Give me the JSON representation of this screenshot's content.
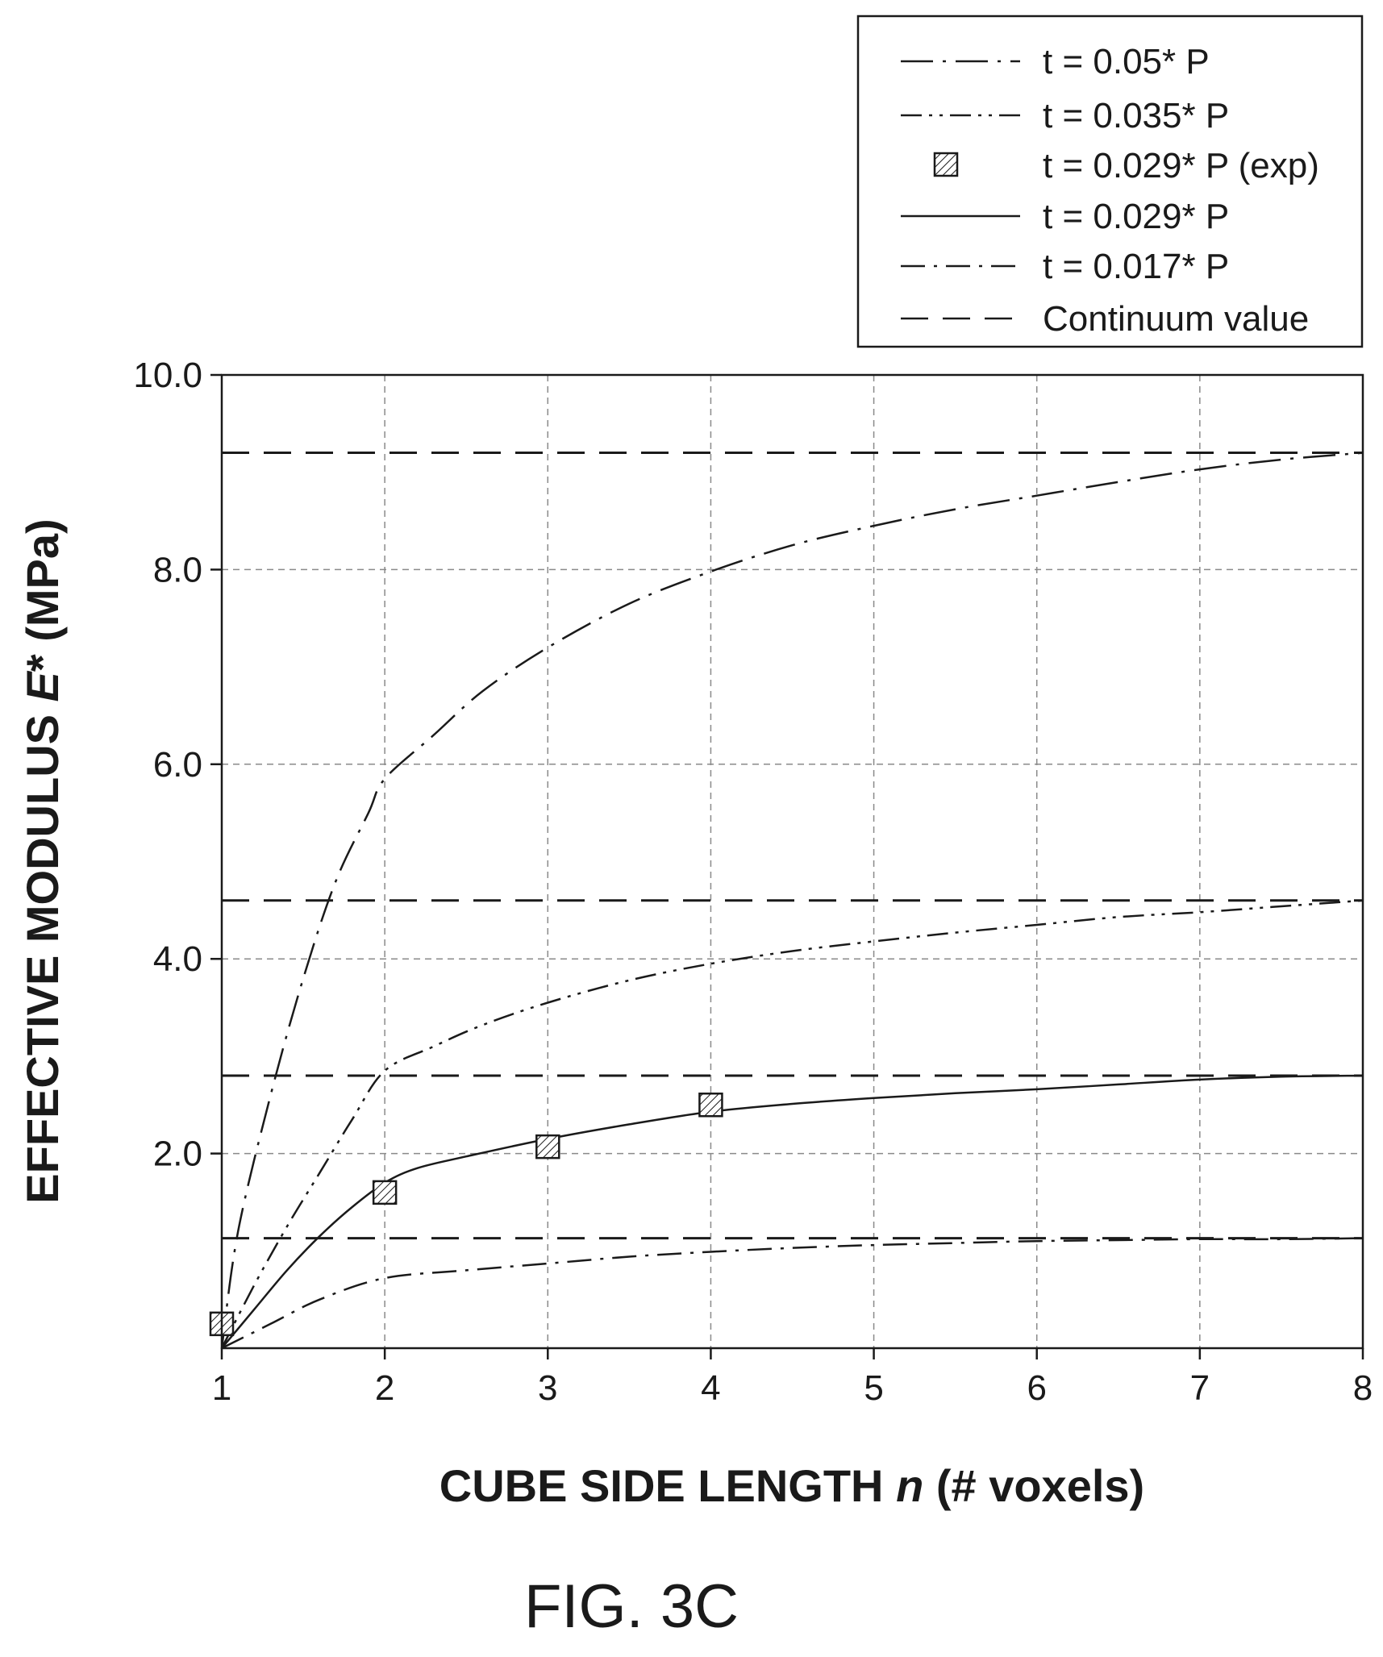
{
  "chart_data": {
    "type": "line",
    "caption": "FIG. 3C",
    "xlabel_prefix": "CUBE SIDE LENGTH ",
    "xlabel_var": "n",
    "xlabel_suffix": " (# voxels)",
    "ylabel_prefix": "EFFECTIVE MODULUS ",
    "ylabel_var": "E",
    "ylabel_suffix": "* (MPa)",
    "xlim": [
      1,
      8
    ],
    "ylim": [
      0,
      10
    ],
    "x_ticks": [
      "1",
      "2",
      "3",
      "4",
      "5",
      "6",
      "7",
      "8"
    ],
    "y_ticks": [
      {
        "value": 2,
        "label": "2.0"
      },
      {
        "value": 4,
        "label": "4.0"
      },
      {
        "value": 6,
        "label": "6.0"
      },
      {
        "value": 8,
        "label": "8.0"
      },
      {
        "value": 10,
        "label": "10.0"
      }
    ],
    "grid": true,
    "legend_position": "top-right",
    "series": [
      {
        "name": "t = 0.05* P",
        "style": "long-dash-dot",
        "x": [
          1,
          1.1,
          1.3,
          1.5,
          1.7,
          1.9,
          2,
          2.3,
          2.6,
          3,
          3.5,
          4,
          4.5,
          5,
          5.5,
          6,
          6.5,
          7,
          7.5,
          8
        ],
        "y": [
          0,
          1.2,
          2.6,
          3.8,
          4.8,
          5.5,
          5.85,
          6.3,
          6.75,
          7.2,
          7.65,
          7.98,
          8.25,
          8.45,
          8.62,
          8.76,
          8.9,
          9.03,
          9.13,
          9.2
        ]
      },
      {
        "name": "t = 0.035* P",
        "style": "dash-dot-dot",
        "x": [
          1,
          1.2,
          1.4,
          1.6,
          1.8,
          2,
          2.3,
          2.6,
          3,
          3.5,
          4,
          4.5,
          5,
          5.5,
          6,
          6.5,
          7,
          7.5,
          8
        ],
        "y": [
          0,
          0.65,
          1.25,
          1.8,
          2.35,
          2.85,
          3.1,
          3.32,
          3.55,
          3.78,
          3.95,
          4.08,
          4.18,
          4.27,
          4.35,
          4.43,
          4.48,
          4.54,
          4.6
        ]
      },
      {
        "name": "t = 0.029* P (exp)",
        "style": "markers",
        "x": [
          1,
          2,
          3,
          4
        ],
        "y": [
          0.25,
          1.6,
          2.07,
          2.5
        ]
      },
      {
        "name": "t = 0.029* P",
        "style": "solid",
        "x": [
          1,
          1.2,
          1.4,
          1.6,
          1.8,
          2,
          2.2,
          2.5,
          3,
          3.5,
          4,
          4.5,
          5,
          5.5,
          6,
          6.5,
          7,
          7.5,
          8
        ],
        "y": [
          0,
          0.4,
          0.8,
          1.15,
          1.45,
          1.7,
          1.85,
          1.97,
          2.15,
          2.3,
          2.43,
          2.51,
          2.57,
          2.62,
          2.66,
          2.71,
          2.76,
          2.79,
          2.8
        ]
      },
      {
        "name": "t = 0.017* P",
        "style": "dash-dot",
        "x": [
          1,
          1.3,
          1.6,
          2,
          2.5,
          3,
          3.5,
          4,
          4.5,
          5,
          5.5,
          6,
          6.5,
          7,
          7.5,
          8
        ],
        "y": [
          0,
          0.25,
          0.5,
          0.72,
          0.8,
          0.87,
          0.94,
          0.99,
          1.03,
          1.06,
          1.08,
          1.1,
          1.11,
          1.12,
          1.12,
          1.13
        ]
      },
      {
        "name": "Continuum value",
        "style": "long-dash",
        "levels": [
          9.2,
          4.6,
          2.8,
          1.13
        ]
      }
    ]
  }
}
